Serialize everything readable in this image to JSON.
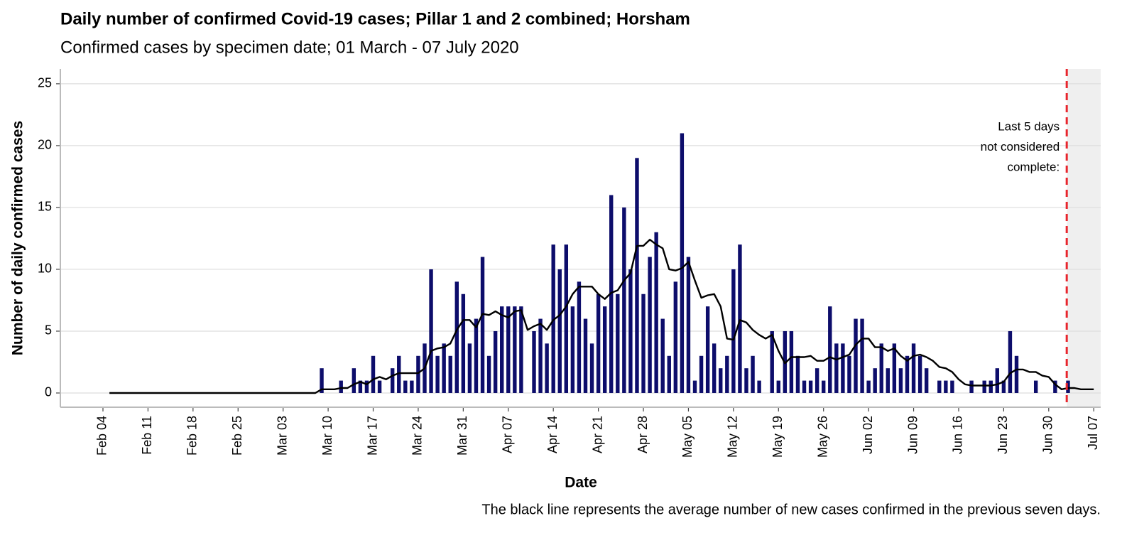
{
  "chart_data": {
    "type": "bar",
    "title": "Daily number of confirmed Covid-19 cases; Pillar 1 and 2 combined; Horsham",
    "subtitle": "Confirmed cases by specimen date; 01 March - 07 July 2020",
    "x_label": "Date",
    "y_label": "Number of daily confirmed cases",
    "caption": "The black line represents the average number of new cases confirmed in the previous seven days.",
    "annotation": [
      "Last 5 days",
      "not considered",
      "complete:"
    ],
    "ylim": [
      -1.15,
      26.2
    ],
    "yticks": [
      0,
      5,
      10,
      15,
      20,
      25
    ],
    "grid": true,
    "categories": [
      null,
      null,
      null,
      null,
      null,
      null,
      "Feb 04",
      null,
      null,
      null,
      null,
      null,
      null,
      "Feb 11",
      null,
      null,
      null,
      null,
      null,
      null,
      "Feb 18",
      null,
      null,
      null,
      null,
      null,
      null,
      "Feb 25",
      null,
      null,
      null,
      null,
      null,
      null,
      "Mar 03",
      null,
      null,
      null,
      null,
      null,
      null,
      "Mar 10",
      null,
      null,
      null,
      null,
      null,
      null,
      "Mar 17",
      null,
      null,
      null,
      null,
      null,
      null,
      "Mar 24",
      null,
      null,
      null,
      null,
      null,
      null,
      "Mar 31",
      null,
      null,
      null,
      null,
      null,
      null,
      "Apr 07",
      null,
      null,
      null,
      null,
      null,
      null,
      "Apr 14",
      null,
      null,
      null,
      null,
      null,
      null,
      "Apr 21",
      null,
      null,
      null,
      null,
      null,
      null,
      "Apr 28",
      null,
      null,
      null,
      null,
      null,
      null,
      "May 05",
      null,
      null,
      null,
      null,
      null,
      null,
      "May 12",
      null,
      null,
      null,
      null,
      null,
      null,
      "May 19",
      null,
      null,
      null,
      null,
      null,
      null,
      "May 26",
      null,
      null,
      null,
      null,
      null,
      null,
      "Jun 02",
      null,
      null,
      null,
      null,
      null,
      null,
      "Jun 09",
      null,
      null,
      null,
      null,
      null,
      null,
      "Jun 16",
      null,
      null,
      null,
      null,
      null,
      null,
      "Jun 23",
      null,
      null,
      null,
      null,
      null,
      null,
      "Jun 30",
      null,
      null,
      null,
      null,
      null,
      null,
      "Jul 07",
      null
    ],
    "series": [
      {
        "type": "bar",
        "color": "#0d0d6b",
        "values": [
          null,
          null,
          null,
          null,
          null,
          null,
          null,
          0,
          0,
          0,
          0,
          0,
          0,
          0,
          0,
          0,
          0,
          0,
          0,
          0,
          0,
          0,
          0,
          0,
          0,
          0,
          0,
          0,
          0,
          0,
          0,
          0,
          0,
          0,
          0,
          0,
          0,
          0,
          0,
          0,
          2,
          0,
          0,
          1,
          0,
          2,
          1,
          1,
          3,
          1,
          0,
          2,
          3,
          1,
          1,
          3,
          4,
          10,
          3,
          4,
          3,
          9,
          8,
          4,
          6,
          11,
          3,
          5,
          7,
          7,
          7,
          7,
          0,
          5,
          6,
          4,
          12,
          10,
          12,
          7,
          9,
          6,
          4,
          8,
          7,
          16,
          8,
          15,
          10,
          19,
          8,
          11,
          13,
          6,
          3,
          9,
          21,
          11,
          1,
          3,
          7,
          4,
          2,
          3,
          10,
          12,
          2,
          3,
          1,
          0,
          5,
          1,
          5,
          5,
          3,
          1,
          1,
          2,
          1,
          7,
          4,
          4,
          3,
          6,
          6,
          1,
          2,
          4,
          2,
          4,
          2,
          3,
          4,
          3,
          2,
          0,
          1,
          1,
          1,
          0,
          0,
          1,
          0,
          1,
          1,
          2,
          1,
          5,
          3,
          0,
          0,
          1,
          0,
          0,
          1,
          0,
          1,
          0,
          0,
          0,
          0,
          null
        ]
      },
      {
        "type": "line",
        "color": "#000000",
        "values": [
          null,
          null,
          null,
          null,
          null,
          null,
          null,
          0,
          0,
          0,
          0,
          0,
          0,
          0,
          0,
          0,
          0,
          0,
          0,
          0,
          0,
          0,
          0,
          0,
          0,
          0,
          0,
          0,
          0,
          0,
          0,
          0,
          0,
          0,
          0,
          0,
          0,
          0,
          0,
          0,
          0.3,
          0.3,
          0.3,
          0.4,
          0.4,
          0.7,
          0.9,
          0.7,
          1.1,
          1.3,
          1.1,
          1.4,
          1.6,
          1.6,
          1.6,
          1.6,
          2,
          3.4,
          3.6,
          3.7,
          4,
          5.1,
          5.9,
          5.9,
          5.3,
          6.4,
          6.3,
          6.6,
          6.3,
          6.1,
          6.6,
          6.7,
          5.1,
          5.4,
          5.6,
          5.1,
          5.9,
          6.3,
          7,
          8,
          8.6,
          8.6,
          8.6,
          8,
          7.6,
          8.1,
          8.3,
          9.1,
          9.7,
          11.9,
          11.9,
          12.4,
          12,
          11.7,
          10,
          9.9,
          10.1,
          10.6,
          9.1,
          7.7,
          7.9,
          8,
          7,
          4.4,
          4.3,
          5.9,
          5.7,
          5.1,
          4.7,
          4.4,
          4.7,
          3.4,
          2.4,
          2.9,
          2.9,
          2.9,
          3,
          2.6,
          2.6,
          2.9,
          2.7,
          2.9,
          3.1,
          3.9,
          4.4,
          4.4,
          3.7,
          3.7,
          3.4,
          3.6,
          3,
          2.6,
          3,
          3.1,
          2.9,
          2.6,
          2.1,
          2,
          1.7,
          1.1,
          0.7,
          0.6,
          0.6,
          0.6,
          0.6,
          0.7,
          0.9,
          1.6,
          1.9,
          1.9,
          1.7,
          1.7,
          1.4,
          1.3,
          0.7,
          0.3,
          0.4,
          0.4,
          0.3,
          0.3,
          0.3,
          null
        ]
      }
    ]
  }
}
